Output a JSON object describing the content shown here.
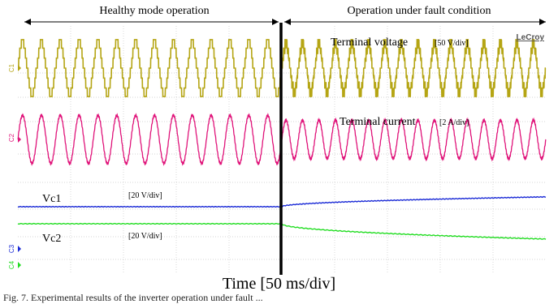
{
  "header": {
    "left_label": "Healthy mode operation",
    "right_label": "Operation under fault condition"
  },
  "brand": "LeCroy",
  "channels": {
    "c1": "C1",
    "c2": "C2",
    "c3": "C3",
    "c4": "C4"
  },
  "annotations": {
    "terminal_voltage": "Terminal voltage",
    "terminal_voltage_scale": "[50 V/div]",
    "terminal_current": "Terminal  current",
    "terminal_current_scale": "[2 A/div]",
    "vc1": "Vc1",
    "vc1_scale": "[20 V/div]",
    "vc2": "Vc2",
    "vc2_scale": "[20 V/div]"
  },
  "xlabel": "Time [50 ms/div]",
  "caption": "Fig. 7. Experimental results of the inverter operation under fault ...",
  "colors": {
    "voltage": "#b5a514",
    "current": "#e0147a",
    "vc1": "#1a2ad6",
    "vc2": "#22dd22",
    "grid": "#c8c8c8",
    "divider": "#000000"
  },
  "chart_data": {
    "type": "line",
    "x_division_ms": 50,
    "divisions": 10,
    "fault_time_ms": 250,
    "series": [
      {
        "name": "Terminal voltage",
        "unit_per_div": "50 V/div",
        "shape": "multilevel staircase",
        "healthy_cycles": 14,
        "fault_cycles": 16,
        "amplitude_div": 1.3
      },
      {
        "name": "Terminal current",
        "unit_per_div": "2 A/div",
        "shape": "sinusoid",
        "healthy_cycles": 14,
        "fault_cycles": 16,
        "amplitude_div": 1.1
      },
      {
        "name": "Vc1",
        "unit_per_div": "20 V/div",
        "healthy_level_div": 0,
        "fault_end_level_div": 0.45
      },
      {
        "name": "Vc2",
        "unit_per_div": "20 V/div",
        "healthy_level_div": 0,
        "fault_end_level_div": -0.7
      }
    ]
  }
}
